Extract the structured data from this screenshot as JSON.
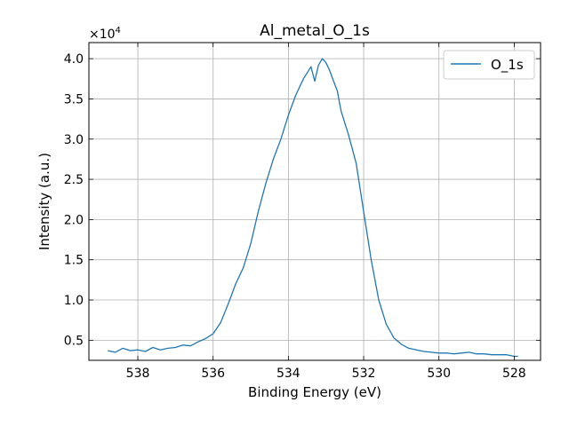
{
  "chart_data": {
    "type": "line",
    "title": "Al_metal_O_1s",
    "xlabel": "Binding Energy (eV)",
    "ylabel": "Intensity (a.u.)",
    "y_multiplier_label": "×10",
    "y_multiplier_exponent": "4",
    "xlim": [
      539.3,
      527.3
    ],
    "x_reversed": true,
    "ylim": [
      0.25,
      4.2
    ],
    "x_ticks": [
      538,
      536,
      534,
      532,
      530,
      528
    ],
    "y_ticks": [
      0.5,
      1.0,
      1.5,
      2.0,
      2.5,
      3.0,
      3.5,
      4.0
    ],
    "x_tick_labels": [
      "538",
      "536",
      "534",
      "532",
      "530",
      "528"
    ],
    "y_tick_labels": [
      "0.5",
      "1.0",
      "1.5",
      "2.0",
      "2.5",
      "3.0",
      "3.5",
      "4.0"
    ],
    "grid": true,
    "legend_position": "top-right",
    "series": [
      {
        "name": "O_1s",
        "color": "#1f77b4",
        "x": [
          538.8,
          538.6,
          538.4,
          538.2,
          538.0,
          537.8,
          537.6,
          537.4,
          537.2,
          537.0,
          536.8,
          536.6,
          536.4,
          536.2,
          536.0,
          535.8,
          535.6,
          535.4,
          535.2,
          535.0,
          534.8,
          534.6,
          534.4,
          534.2,
          534.0,
          533.8,
          533.6,
          533.4,
          533.3,
          533.2,
          533.1,
          533.0,
          532.9,
          532.8,
          532.7,
          532.6,
          532.4,
          532.2,
          532.0,
          531.8,
          531.6,
          531.4,
          531.2,
          531.0,
          530.8,
          530.6,
          530.4,
          530.2,
          530.0,
          529.8,
          529.6,
          529.4,
          529.2,
          529.0,
          528.8,
          528.6,
          528.4,
          528.2,
          528.0,
          527.9
        ],
        "y": [
          0.37,
          0.35,
          0.4,
          0.37,
          0.38,
          0.36,
          0.41,
          0.38,
          0.4,
          0.41,
          0.44,
          0.43,
          0.48,
          0.52,
          0.58,
          0.72,
          0.95,
          1.2,
          1.4,
          1.7,
          2.1,
          2.45,
          2.75,
          3.0,
          3.3,
          3.55,
          3.75,
          3.9,
          3.72,
          3.92,
          4.0,
          3.95,
          3.85,
          3.72,
          3.6,
          3.35,
          3.05,
          2.7,
          2.1,
          1.5,
          1.0,
          0.7,
          0.53,
          0.45,
          0.4,
          0.38,
          0.36,
          0.35,
          0.34,
          0.34,
          0.33,
          0.34,
          0.35,
          0.33,
          0.33,
          0.32,
          0.32,
          0.32,
          0.3,
          0.3
        ]
      }
    ]
  }
}
